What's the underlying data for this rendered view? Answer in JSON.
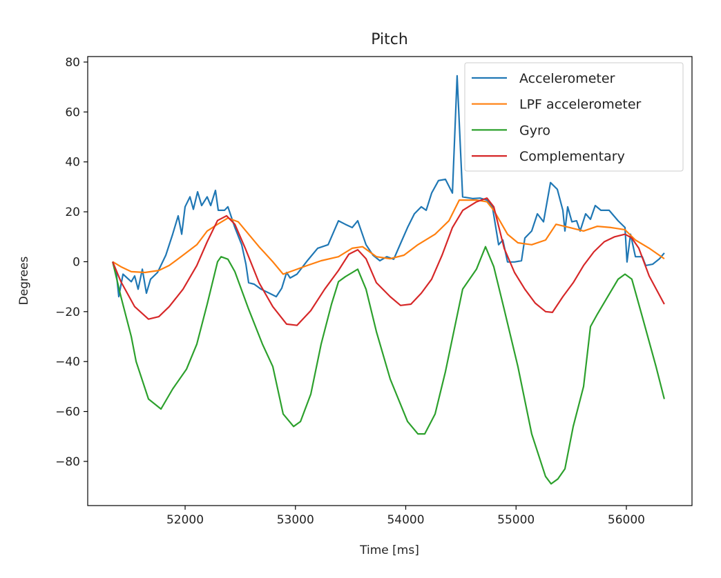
{
  "chart_data": {
    "type": "line",
    "title": "Pitch",
    "xlabel": "Time [ms]",
    "ylabel": "Degrees",
    "xlim": [
      51117,
      56595
    ],
    "ylim": [
      -97.7,
      82.2
    ],
    "xticks": [
      52000,
      53000,
      54000,
      55000,
      56000
    ],
    "xtick_labels": [
      "52000",
      "53000",
      "54000",
      "55000",
      "56000"
    ],
    "yticks": [
      80,
      60,
      40,
      20,
      0,
      -20,
      -40,
      -60,
      -80
    ],
    "ytick_labels": [
      "80",
      "60",
      "40",
      "20",
      "0",
      "−20",
      "−40",
      "−60",
      "−80"
    ],
    "grid": false,
    "legend_position": "top-right",
    "series": [
      {
        "name": "Accelerometer",
        "color": "#1f77b4",
        "points": [
          [
            51343,
            0
          ],
          [
            51374,
            -3.5
          ],
          [
            51399,
            -14
          ],
          [
            51437,
            -5
          ],
          [
            51512,
            -8
          ],
          [
            51543,
            -5.7
          ],
          [
            51574,
            -11
          ],
          [
            51612,
            -3
          ],
          [
            51649,
            -12.6
          ],
          [
            51687,
            -7
          ],
          [
            51750,
            -4.3
          ],
          [
            51825,
            2.6
          ],
          [
            51887,
            11
          ],
          [
            51937,
            18.4
          ],
          [
            51969,
            11
          ],
          [
            52000,
            22
          ],
          [
            52044,
            26
          ],
          [
            52075,
            21
          ],
          [
            52113,
            28
          ],
          [
            52150,
            22.5
          ],
          [
            52200,
            26
          ],
          [
            52232,
            22.5
          ],
          [
            52275,
            28.6
          ],
          [
            52300,
            20.6
          ],
          [
            52357,
            20.6
          ],
          [
            52388,
            22
          ],
          [
            52451,
            13.7
          ],
          [
            52513,
            6.8
          ],
          [
            52551,
            -1
          ],
          [
            52576,
            -8.4
          ],
          [
            52626,
            -9
          ],
          [
            52689,
            -11
          ],
          [
            52764,
            -12.6
          ],
          [
            52826,
            -14
          ],
          [
            52876,
            -10.6
          ],
          [
            52920,
            -4.3
          ],
          [
            52952,
            -6.5
          ],
          [
            53014,
            -5
          ],
          [
            53108,
            0.4
          ],
          [
            53202,
            5.4
          ],
          [
            53296,
            6.8
          ],
          [
            53390,
            16.4
          ],
          [
            53452,
            15
          ],
          [
            53515,
            13.7
          ],
          [
            53565,
            16.4
          ],
          [
            53640,
            6.8
          ],
          [
            53703,
            2.6
          ],
          [
            53765,
            0.4
          ],
          [
            53828,
            2
          ],
          [
            53891,
            1
          ],
          [
            53953,
            7.3
          ],
          [
            54016,
            13.7
          ],
          [
            54078,
            19.2
          ],
          [
            54141,
            22
          ],
          [
            54185,
            20.6
          ],
          [
            54235,
            27.5
          ],
          [
            54297,
            32.5
          ],
          [
            54360,
            33
          ],
          [
            54423,
            27.5
          ],
          [
            54466,
            74.5
          ],
          [
            54516,
            26
          ],
          [
            54610,
            25.3
          ],
          [
            54673,
            25.5
          ],
          [
            54736,
            24.7
          ],
          [
            54786,
            22
          ],
          [
            54842,
            6.8
          ],
          [
            54880,
            8.7
          ],
          [
            54923,
            -0.1
          ],
          [
            54986,
            -0.1
          ],
          [
            55049,
            0.4
          ],
          [
            55080,
            9.5
          ],
          [
            55142,
            12.3
          ],
          [
            55193,
            19.2
          ],
          [
            55249,
            16
          ],
          [
            55312,
            31.7
          ],
          [
            55374,
            29
          ],
          [
            55424,
            20.6
          ],
          [
            55443,
            12.3
          ],
          [
            55468,
            22
          ],
          [
            55506,
            16
          ],
          [
            55549,
            16.4
          ],
          [
            55581,
            12.3
          ],
          [
            55631,
            19.2
          ],
          [
            55675,
            17
          ],
          [
            55718,
            22.5
          ],
          [
            55769,
            20.6
          ],
          [
            55844,
            20.6
          ],
          [
            55925,
            16.4
          ],
          [
            55988,
            13.7
          ],
          [
            56006,
            -0.1
          ],
          [
            56038,
            11
          ],
          [
            56082,
            2
          ],
          [
            56144,
            2
          ],
          [
            56175,
            -1.5
          ],
          [
            56238,
            -1
          ],
          [
            56301,
            1.2
          ],
          [
            56344,
            3.5
          ]
        ]
      },
      {
        "name": "LPF accelerometer",
        "color": "#ff7f0e",
        "points": [
          [
            51343,
            0
          ],
          [
            51418,
            -2
          ],
          [
            51512,
            -4
          ],
          [
            51637,
            -4.3
          ],
          [
            51762,
            -3.5
          ],
          [
            51856,
            -1.5
          ],
          [
            51981,
            2.6
          ],
          [
            52106,
            6.8
          ],
          [
            52200,
            12.3
          ],
          [
            52294,
            15
          ],
          [
            52388,
            17.5
          ],
          [
            52482,
            16
          ],
          [
            52576,
            11
          ],
          [
            52670,
            6
          ],
          [
            52795,
            0
          ],
          [
            52889,
            -5
          ],
          [
            52983,
            -3.5
          ],
          [
            53108,
            -1.5
          ],
          [
            53233,
            0.4
          ],
          [
            53390,
            2
          ],
          [
            53515,
            5.4
          ],
          [
            53609,
            6
          ],
          [
            53734,
            2
          ],
          [
            53859,
            1.2
          ],
          [
            53984,
            2.6
          ],
          [
            54110,
            6.8
          ],
          [
            54266,
            11
          ],
          [
            54391,
            16.4
          ],
          [
            54485,
            24.7
          ],
          [
            54642,
            24.7
          ],
          [
            54736,
            24
          ],
          [
            54798,
            20.6
          ],
          [
            54923,
            11
          ],
          [
            55017,
            7.6
          ],
          [
            55142,
            6.8
          ],
          [
            55268,
            8.7
          ],
          [
            55362,
            15
          ],
          [
            55487,
            13.7
          ],
          [
            55612,
            12.3
          ],
          [
            55737,
            14.2
          ],
          [
            55862,
            13.7
          ],
          [
            55988,
            12.8
          ],
          [
            56082,
            8.7
          ],
          [
            56207,
            5.4
          ],
          [
            56344,
            1.2
          ]
        ]
      },
      {
        "name": "Gyro",
        "color": "#2ca02c",
        "points": [
          [
            51343,
            0
          ],
          [
            51418,
            -14
          ],
          [
            51512,
            -30
          ],
          [
            51556,
            -40
          ],
          [
            51668,
            -55
          ],
          [
            51781,
            -59
          ],
          [
            51887,
            -51
          ],
          [
            52013,
            -43
          ],
          [
            52106,
            -33
          ],
          [
            52200,
            -17
          ],
          [
            52294,
            0
          ],
          [
            52326,
            2
          ],
          [
            52388,
            1
          ],
          [
            52451,
            -4
          ],
          [
            52576,
            -19
          ],
          [
            52701,
            -33
          ],
          [
            52795,
            -42
          ],
          [
            52889,
            -61
          ],
          [
            52983,
            -66
          ],
          [
            53046,
            -64
          ],
          [
            53140,
            -53
          ],
          [
            53233,
            -33
          ],
          [
            53327,
            -17
          ],
          [
            53390,
            -8
          ],
          [
            53452,
            -6
          ],
          [
            53565,
            -3
          ],
          [
            53640,
            -11
          ],
          [
            53734,
            -28
          ],
          [
            53859,
            -47
          ],
          [
            54016,
            -64
          ],
          [
            54110,
            -69
          ],
          [
            54172,
            -69
          ],
          [
            54266,
            -61
          ],
          [
            54360,
            -44
          ],
          [
            54516,
            -11
          ],
          [
            54641,
            -3
          ],
          [
            54723,
            6
          ],
          [
            54798,
            -2
          ],
          [
            54892,
            -19
          ],
          [
            55017,
            -42
          ],
          [
            55142,
            -69
          ],
          [
            55267,
            -86
          ],
          [
            55318,
            -89
          ],
          [
            55380,
            -87
          ],
          [
            55443,
            -83
          ],
          [
            55518,
            -66
          ],
          [
            55612,
            -50
          ],
          [
            55675,
            -26
          ],
          [
            55737,
            -21
          ],
          [
            55831,
            -14
          ],
          [
            55925,
            -7
          ],
          [
            55988,
            -5
          ],
          [
            56050,
            -7
          ],
          [
            56144,
            -22
          ],
          [
            56269,
            -42
          ],
          [
            56344,
            -55
          ]
        ]
      },
      {
        "name": "Complementary",
        "color": "#d62728",
        "points": [
          [
            51343,
            0
          ],
          [
            51418,
            -8
          ],
          [
            51543,
            -18
          ],
          [
            51668,
            -23
          ],
          [
            51762,
            -22
          ],
          [
            51856,
            -18
          ],
          [
            51981,
            -11
          ],
          [
            52106,
            -1.5
          ],
          [
            52200,
            8
          ],
          [
            52294,
            16.5
          ],
          [
            52376,
            18.4
          ],
          [
            52451,
            15
          ],
          [
            52545,
            5.4
          ],
          [
            52670,
            -8.4
          ],
          [
            52795,
            -18
          ],
          [
            52920,
            -25
          ],
          [
            53014,
            -25.5
          ],
          [
            53139,
            -19.6
          ],
          [
            53265,
            -11
          ],
          [
            53390,
            -3.5
          ],
          [
            53484,
            3
          ],
          [
            53565,
            4.8
          ],
          [
            53640,
            1.2
          ],
          [
            53734,
            -8.4
          ],
          [
            53859,
            -14
          ],
          [
            53953,
            -17.5
          ],
          [
            54047,
            -17
          ],
          [
            54141,
            -12.6
          ],
          [
            54235,
            -7
          ],
          [
            54329,
            2.6
          ],
          [
            54423,
            13.7
          ],
          [
            54517,
            20.6
          ],
          [
            54642,
            24
          ],
          [
            54736,
            25.5
          ],
          [
            54798,
            22
          ],
          [
            54892,
            5.4
          ],
          [
            54986,
            -4.3
          ],
          [
            55080,
            -11
          ],
          [
            55174,
            -16.6
          ],
          [
            55268,
            -20
          ],
          [
            55330,
            -20.3
          ],
          [
            55424,
            -14
          ],
          [
            55518,
            -8.4
          ],
          [
            55612,
            -1.5
          ],
          [
            55706,
            4
          ],
          [
            55800,
            8
          ],
          [
            55894,
            10
          ],
          [
            55988,
            11
          ],
          [
            56050,
            9.5
          ],
          [
            56113,
            5.4
          ],
          [
            56207,
            -5.7
          ],
          [
            56344,
            -17
          ]
        ]
      }
    ]
  }
}
